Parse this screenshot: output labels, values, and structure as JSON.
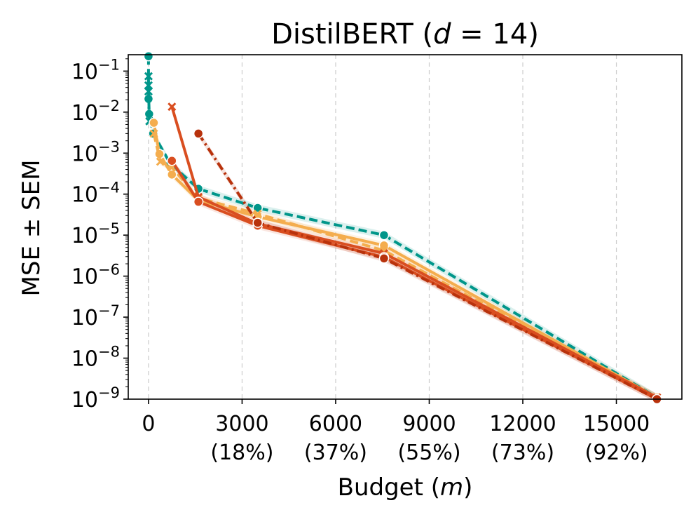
{
  "chart_data": {
    "type": "line",
    "title": "DistilBERT (d = 14)",
    "title_parts": {
      "prefix": "DistilBERT (",
      "var": "d",
      "suffix": " = 14)"
    },
    "xlabel": "Budget (m)",
    "xlabel_parts": {
      "prefix": "Budget (",
      "var": "m",
      "suffix": ")"
    },
    "ylabel": "MSE ± SEM",
    "x_scale": "linear",
    "y_scale": "log",
    "xlim": [
      -650,
      17100
    ],
    "ylim_exp": [
      -9,
      -0.6
    ],
    "x_ticks": [
      {
        "value": 0,
        "label": "0",
        "pct": ""
      },
      {
        "value": 3000,
        "label": "3000",
        "pct": "(18%)"
      },
      {
        "value": 6000,
        "label": "6000",
        "pct": "(37%)"
      },
      {
        "value": 9000,
        "label": "9000",
        "pct": "(55%)"
      },
      {
        "value": 12000,
        "label": "12000",
        "pct": "(73%)"
      },
      {
        "value": 15000,
        "label": "15000",
        "pct": "(92%)"
      }
    ],
    "y_ticks": [
      {
        "exp": -1,
        "base": "10",
        "sup": "−1"
      },
      {
        "exp": -2,
        "base": "10",
        "sup": "−2"
      },
      {
        "exp": -3,
        "base": "10",
        "sup": "−3"
      },
      {
        "exp": -4,
        "base": "10",
        "sup": "−4"
      },
      {
        "exp": -5,
        "base": "10",
        "sup": "−5"
      },
      {
        "exp": -6,
        "base": "10",
        "sup": "−6"
      },
      {
        "exp": -7,
        "base": "10",
        "sup": "−7"
      },
      {
        "exp": -8,
        "base": "10",
        "sup": "−8"
      },
      {
        "exp": -9,
        "base": "10",
        "sup": "−9"
      }
    ],
    "grid": {
      "x": true,
      "y": false
    },
    "series": [
      {
        "name": "teal-dashed-circle",
        "color": "#00968a",
        "dash": "dashed",
        "marker": "circle",
        "points": [
          [
            0,
            0.23
          ],
          [
            0,
            0.021
          ],
          [
            20,
            0.009
          ],
          [
            150,
            0.003
          ],
          [
            700,
            0.00055
          ],
          [
            1600,
            0.000135
          ],
          [
            3500,
            4.6e-05
          ],
          [
            7550,
            1e-05
          ],
          [
            16300,
            1.1e-09
          ]
        ]
      },
      {
        "name": "teal-dashed-cross",
        "color": "#00968a",
        "dash": "dashed",
        "marker": "x",
        "points": [
          [
            0,
            0.075
          ],
          [
            0,
            0.045
          ],
          [
            0,
            0.032
          ],
          [
            30,
            0.006
          ]
        ]
      },
      {
        "name": "orange-solid-circle",
        "color": "#f4ad4e",
        "dash": "solid",
        "marker": "circle",
        "points": [
          [
            170,
            0.0055
          ],
          [
            350,
            0.00095
          ],
          [
            750,
            0.0003
          ],
          [
            1600,
            7e-05
          ],
          [
            3500,
            2.8e-05
          ],
          [
            7550,
            5.6e-06
          ],
          [
            16300,
            1.1e-09
          ]
        ]
      },
      {
        "name": "orange-dashed-cross",
        "color": "#f4ad4e",
        "dash": "dashed",
        "marker": "x",
        "points": [
          [
            170,
            0.003
          ],
          [
            380,
            0.00062
          ],
          [
            750,
            0.00045
          ],
          [
            1600,
            8e-05
          ],
          [
            3500,
            3.3e-05
          ],
          [
            7550,
            4.2e-06
          ],
          [
            16300,
            1.1e-09
          ]
        ]
      },
      {
        "name": "red-solid-cross",
        "color": "#d94e20",
        "dash": "solid",
        "marker": "x",
        "points": [
          [
            750,
            0.0135
          ],
          [
            1600,
            8.5e-05
          ],
          [
            3500,
            1.9e-05
          ],
          [
            7550,
            3.6e-06
          ],
          [
            16300,
            1.1e-09
          ]
        ]
      },
      {
        "name": "red-solid-circle",
        "color": "#d94e20",
        "dash": "solid",
        "marker": "circle",
        "points": [
          [
            750,
            0.00065
          ],
          [
            1600,
            6.5e-05
          ],
          [
            3500,
            1.7e-05
          ],
          [
            7550,
            2.9e-06
          ],
          [
            16300,
            1e-09
          ]
        ]
      },
      {
        "name": "darkred-dashdot-circle",
        "color": "#b8320c",
        "dash": "dashdot",
        "marker": "circle",
        "points": [
          [
            1600,
            0.003
          ],
          [
            3500,
            2e-05
          ],
          [
            7550,
            2.7e-06
          ],
          [
            16300,
            1e-09
          ]
        ]
      }
    ]
  }
}
